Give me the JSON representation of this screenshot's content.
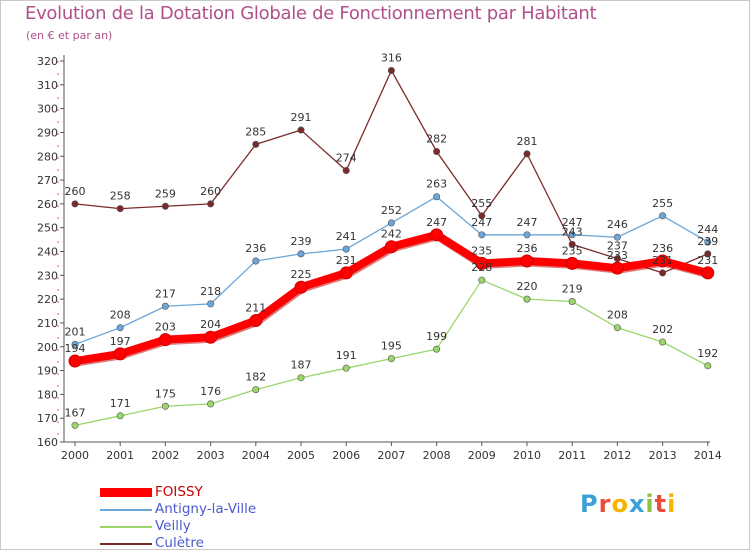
{
  "chart_data": {
    "type": "line",
    "title": "Evolution de la Dotation Globale de Fonctionnement par Habitant",
    "subtitle": "(en € et par an)",
    "xlabel": "",
    "ylabel": "",
    "ylim": [
      160,
      320
    ],
    "y_ticks": [
      160,
      170,
      180,
      190,
      200,
      210,
      220,
      230,
      240,
      250,
      260,
      270,
      280,
      290,
      300,
      310,
      320
    ],
    "categories": [
      "2000",
      "2001",
      "2002",
      "2003",
      "2004",
      "2005",
      "2006",
      "2007",
      "2008",
      "2009",
      "2010",
      "2011",
      "2012",
      "2013",
      "2014"
    ],
    "grid": false,
    "legend_position": "bottom-left",
    "series": [
      {
        "name": "FOISSY",
        "color": "#ff0000",
        "values": [
          194,
          197,
          203,
          204,
          211,
          225,
          231,
          242,
          247,
          235,
          236,
          235,
          233,
          236,
          231
        ]
      },
      {
        "name": "Antigny-la-Ville",
        "color": "#6aa6d8",
        "values": [
          201,
          208,
          217,
          218,
          236,
          239,
          241,
          252,
          263,
          247,
          247,
          247,
          246,
          255,
          244
        ]
      },
      {
        "name": "Veilly",
        "color": "#9ad66a",
        "values": [
          167,
          171,
          175,
          176,
          182,
          187,
          191,
          195,
          199,
          228,
          220,
          219,
          208,
          202,
          192
        ]
      },
      {
        "name": "Culètre",
        "color": "#7a2a2a",
        "values": [
          260,
          258,
          259,
          260,
          285,
          291,
          274,
          316,
          282,
          255,
          281,
          243,
          237,
          231,
          239
        ]
      }
    ]
  },
  "logo": {
    "letters": [
      "P",
      "r",
      "o",
      "x",
      "i",
      "t",
      "i"
    ],
    "colors": [
      "#3aa0d8",
      "#e94e3d",
      "#f5b400",
      "#3aa0d8",
      "#8cc63f",
      "#e94e3d",
      "#f5b400"
    ]
  }
}
